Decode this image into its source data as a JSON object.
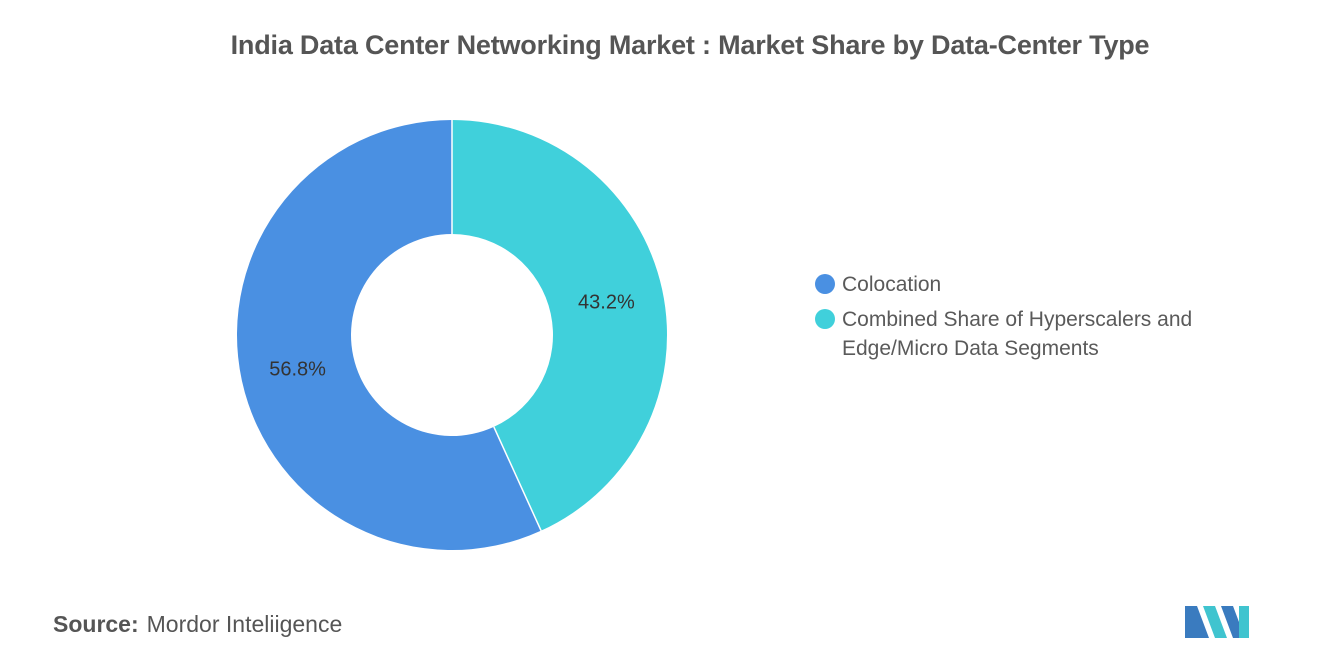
{
  "title": "India Data Center Networking Market : Market Share by Data-Center Type",
  "source": {
    "label": "Source:",
    "value": "Mordor Inteliigence"
  },
  "chart_data": {
    "type": "pie",
    "variant": "donut",
    "title": "India Data Center Networking Market : Market Share by Data-Center Type",
    "legend_position": "right",
    "categories": [
      "Colocation",
      "Combined Share of Hyperscalers and Edge/Micro Data Segments"
    ],
    "values": [
      56.8,
      43.2
    ],
    "data_labels": [
      "56.8%",
      "43.2%"
    ],
    "colors": [
      "#4a90e2",
      "#40d0db"
    ]
  },
  "legend": [
    {
      "label": "Colocation",
      "color": "#4a90e2"
    },
    {
      "label": "Combined Share of Hyperscalers and Edge/Micro Data Segments",
      "color": "#40d0db"
    }
  ],
  "logo": {
    "name": "Mordor Intelligence logo",
    "colors": [
      "#3a7bbf",
      "#40c4cf"
    ]
  }
}
